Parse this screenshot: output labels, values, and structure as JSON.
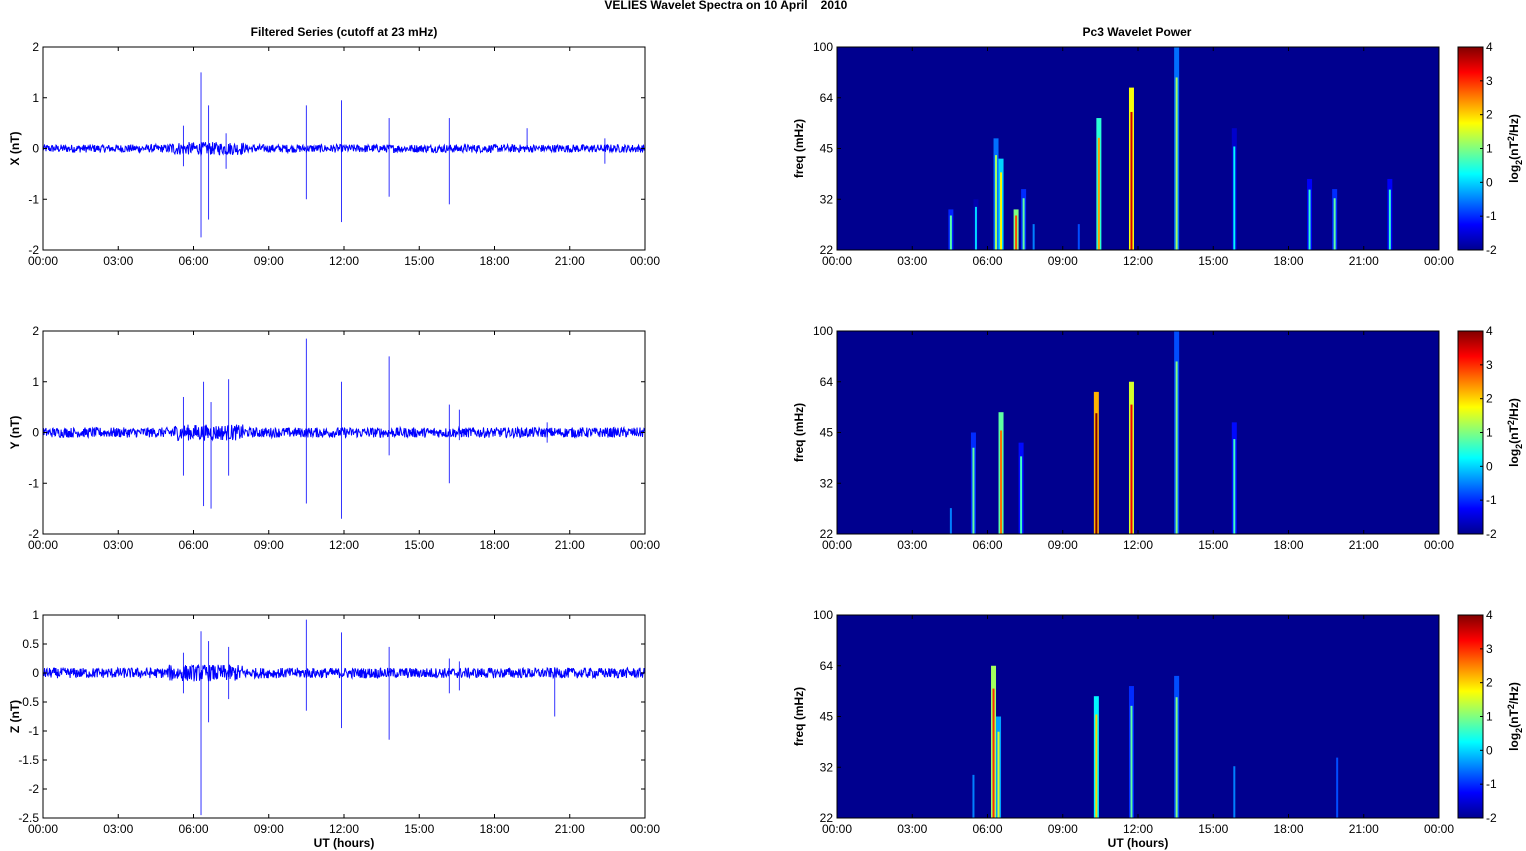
{
  "figure": {
    "title_parts": [
      "VELIES Wavelet Spectra on 10 April",
      "2010"
    ],
    "left_title": "Filtered Series (cutoff at 23 mHz)",
    "right_title": "Pc3 Wavelet Power",
    "colorbar_ticks": [
      "4",
      "3",
      "2",
      "1",
      "0",
      "-1",
      "-2"
    ],
    "colorbar_range": [
      -2,
      4
    ],
    "colormap": [
      "#00008f",
      "#0000ff",
      "#0080ff",
      "#00ffff",
      "#80ff80",
      "#ffff00",
      "#ff8000",
      "#ff0000",
      "#800000"
    ],
    "background_color": "#00008f",
    "series_color": "#0000ff"
  },
  "chart_data": [
    {
      "type": "line",
      "panel": "X",
      "ylabel": "X (nT)",
      "xlabel": "",
      "xticks": [
        "00:00",
        "03:00",
        "06:00",
        "09:00",
        "12:00",
        "15:00",
        "18:00",
        "21:00",
        "00:00"
      ],
      "xlim": [
        0,
        24
      ],
      "ylim": [
        -2,
        2
      ],
      "yticks": [
        2,
        1,
        0,
        -1,
        -2
      ],
      "ytick_labels": [
        "2",
        "1",
        "0",
        "-1",
        "-2"
      ],
      "noise_amplitude": 0.08,
      "spikes": [
        [
          5.6,
          0.45,
          -0.35
        ],
        [
          6.3,
          1.5,
          -1.75
        ],
        [
          6.6,
          0.85,
          -1.4
        ],
        [
          7.3,
          0.3,
          -0.4
        ],
        [
          10.5,
          0.85,
          -1.0
        ],
        [
          11.9,
          0.95,
          -1.45
        ],
        [
          13.8,
          0.6,
          -0.95
        ],
        [
          16.2,
          0.6,
          -1.1
        ],
        [
          19.3,
          0.4,
          0.0
        ],
        [
          22.4,
          0.2,
          -0.3
        ]
      ]
    },
    {
      "type": "heatmap",
      "panel": "X",
      "ylabel": "freq (mHz)",
      "colorbar_label": "log2(nT^2/Hz)",
      "xticks": [
        "00:00",
        "03:00",
        "06:00",
        "09:00",
        "12:00",
        "15:00",
        "18:00",
        "21:00",
        "00:00"
      ],
      "yticks": [
        "100",
        "64",
        "45",
        "32",
        "22"
      ],
      "events": [
        [
          4.5,
          0.75,
          0.2
        ],
        [
          5.5,
          0.0,
          0.25
        ],
        [
          6.3,
          1.2,
          0.55
        ],
        [
          6.5,
          1.8,
          0.45
        ],
        [
          7.1,
          2.8,
          0.2
        ],
        [
          7.4,
          0.8,
          0.3
        ],
        [
          7.8,
          -0.5,
          0.15
        ],
        [
          9.6,
          -0.8,
          0.15
        ],
        [
          10.4,
          2.3,
          0.65
        ],
        [
          11.7,
          3.5,
          0.8
        ],
        [
          13.5,
          1.2,
          1.0
        ],
        [
          15.8,
          0.2,
          0.6
        ],
        [
          18.8,
          0.5,
          0.35
        ],
        [
          19.8,
          0.8,
          0.3
        ],
        [
          22.0,
          0.5,
          0.35
        ]
      ]
    },
    {
      "type": "line",
      "panel": "Y",
      "ylabel": "Y (nT)",
      "xlabel": "",
      "xticks": [
        "00:00",
        "03:00",
        "06:00",
        "09:00",
        "12:00",
        "15:00",
        "18:00",
        "21:00",
        "00:00"
      ],
      "xlim": [
        0,
        24
      ],
      "ylim": [
        -2,
        2
      ],
      "yticks": [
        2,
        1,
        0,
        -1,
        -2
      ],
      "ytick_labels": [
        "2",
        "1",
        "0",
        "-1",
        "-2"
      ],
      "noise_amplitude": 0.1,
      "spikes": [
        [
          5.6,
          0.7,
          -0.85
        ],
        [
          6.4,
          1.0,
          -1.45
        ],
        [
          6.7,
          0.6,
          -1.5
        ],
        [
          7.4,
          1.05,
          -0.85
        ],
        [
          10.5,
          1.85,
          -1.4
        ],
        [
          11.9,
          1.0,
          -1.7
        ],
        [
          13.8,
          1.5,
          -0.45
        ],
        [
          16.2,
          0.55,
          -1.0
        ],
        [
          16.6,
          0.45,
          -0.15
        ],
        [
          20.1,
          0.2,
          -0.2
        ]
      ]
    },
    {
      "type": "heatmap",
      "panel": "Y",
      "ylabel": "freq (mHz)",
      "colorbar_label": "log2(nT^2/Hz)",
      "xticks": [
        "00:00",
        "03:00",
        "06:00",
        "09:00",
        "12:00",
        "15:00",
        "18:00",
        "21:00",
        "00:00"
      ],
      "yticks": [
        "100",
        "64",
        "45",
        "32",
        "22"
      ],
      "events": [
        [
          4.5,
          -0.5,
          0.15
        ],
        [
          5.4,
          0.8,
          0.5
        ],
        [
          6.5,
          2.6,
          0.6
        ],
        [
          7.3,
          0.6,
          0.45
        ],
        [
          10.3,
          4.0,
          0.7
        ],
        [
          11.7,
          3.3,
          0.75
        ],
        [
          13.5,
          1.0,
          1.0
        ],
        [
          15.8,
          0.6,
          0.55
        ]
      ]
    },
    {
      "type": "line",
      "panel": "Z",
      "ylabel": "Z (nT)",
      "xlabel": "UT (hours)",
      "xticks": [
        "00:00",
        "03:00",
        "06:00",
        "09:00",
        "12:00",
        "15:00",
        "18:00",
        "21:00",
        "00:00"
      ],
      "xlim": [
        0,
        24
      ],
      "ylim": [
        -2.5,
        1
      ],
      "yticks": [
        1,
        0.5,
        0,
        -0.5,
        -1,
        -1.5,
        -2,
        -2.5
      ],
      "ytick_labels": [
        "1",
        "0.5",
        "0",
        "-0.5",
        "-1",
        "-1.5",
        "-2",
        "-2.5"
      ],
      "noise_amplitude": 0.09,
      "spikes": [
        [
          5.6,
          0.35,
          -0.35
        ],
        [
          6.3,
          0.72,
          -2.45
        ],
        [
          6.6,
          0.55,
          -0.85
        ],
        [
          7.4,
          0.45,
          -0.45
        ],
        [
          10.5,
          0.92,
          -0.65
        ],
        [
          11.9,
          0.7,
          -0.95
        ],
        [
          13.8,
          0.45,
          -1.15
        ],
        [
          16.2,
          0.25,
          -0.35
        ],
        [
          16.6,
          0.2,
          -0.3
        ],
        [
          20.4,
          0.1,
          -0.75
        ]
      ]
    },
    {
      "type": "heatmap",
      "panel": "Z",
      "ylabel": "freq (mHz)",
      "xlabel": "UT (hours)",
      "colorbar_label": "log2(nT^2/Hz)",
      "xticks": [
        "00:00",
        "03:00",
        "06:00",
        "09:00",
        "12:00",
        "15:00",
        "18:00",
        "21:00",
        "00:00"
      ],
      "yticks": [
        "100",
        "64",
        "45",
        "32",
        "22"
      ],
      "events": [
        [
          5.4,
          -0.5,
          0.25
        ],
        [
          6.2,
          3.0,
          0.75
        ],
        [
          6.4,
          1.5,
          0.5
        ],
        [
          10.3,
          2.0,
          0.6
        ],
        [
          11.7,
          0.8,
          0.65
        ],
        [
          13.5,
          1.0,
          0.7
        ],
        [
          15.8,
          -0.5,
          0.3
        ],
        [
          19.9,
          -0.8,
          0.35
        ]
      ]
    }
  ]
}
